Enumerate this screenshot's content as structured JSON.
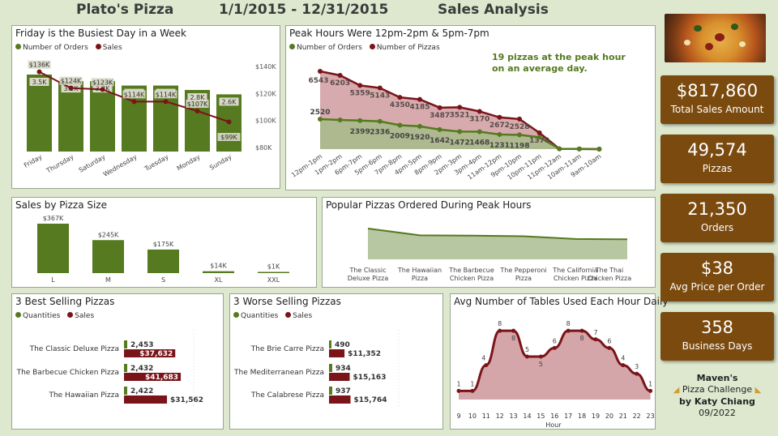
{
  "header": {
    "brand": "Plato's Pizza",
    "date_range": "1/1/2015 - 12/31/2015",
    "report": "Sales Analysis"
  },
  "kpis": [
    {
      "value": "$817,860",
      "label": "Total Sales Amount"
    },
    {
      "value": "49,574",
      "label": "Pizzas"
    },
    {
      "value": "21,350",
      "label": "Orders"
    },
    {
      "value": "$38",
      "label": "Avg Price per Order"
    },
    {
      "value": "358",
      "label": "Business Days"
    }
  ],
  "credit": {
    "line1": "Maven's",
    "line2": "Pizza Challenge",
    "line3": "by Katy Chiang",
    "line4": "09/2022"
  },
  "colors": {
    "green": "#557a1f",
    "maroon": "#7a1418",
    "kpi_bg": "#7b4a0e",
    "bg": "#dde8cf"
  },
  "chart_data": [
    {
      "type": "bar",
      "title": "Friday is the Busiest Day in a Week",
      "legend": [
        "Number of Orders",
        "Sales"
      ],
      "categories": [
        "Friday",
        "Thursday",
        "Saturday",
        "Wednesday",
        "Tuesday",
        "Monday",
        "Sunday"
      ],
      "series": [
        {
          "name": "Number of Orders",
          "values": [
            3.5,
            3.2,
            3.2,
            3.0,
            3.0,
            2.8,
            2.6
          ],
          "labels": [
            "3.5K",
            "3.2K",
            "3.2K",
            "3.0K",
            "3.0K",
            "2.8K",
            "2.6K"
          ]
        },
        {
          "name": "Sales",
          "values": [
            136,
            124,
            123,
            114,
            114,
            107,
            99
          ],
          "labels": [
            "$136K",
            "$124K",
            "$123K",
            "$114K",
            "$114K",
            "$107K",
            "$99K"
          ]
        }
      ],
      "y2_ticks": [
        "$140K",
        "$120K",
        "$100K",
        "$80K"
      ],
      "y2_tick_values": [
        140,
        120,
        100,
        80
      ]
    },
    {
      "type": "area",
      "title": "Peak Hours Were 12pm-2pm & 5pm-7pm",
      "legend": [
        "Number of Orders",
        "Number of Pizzas"
      ],
      "annotation": "19 pizzas at the peak hour on an average day.",
      "categories": [
        "12pm-1pm",
        "1pm-2pm",
        "6pm-7pm",
        "5pm-6pm",
        "7pm-8pm",
        "4pm-5pm",
        "8pm-9pm",
        "2pm-3pm",
        "3pm-4pm",
        "11am-12pm",
        "9pm-10pm",
        "10pm-11pm",
        "11pm-12am",
        "10am-11am",
        "9am-10am"
      ],
      "series": [
        {
          "name": "Number of Orders",
          "values": [
            2520,
            2455,
            2399,
            2336,
            2009,
            1920,
            1642,
            1472,
            1468,
            1231,
            1198,
            1000,
            28,
            8,
            1
          ],
          "labels": [
            "2520",
            "",
            "2399",
            "2336",
            "2009",
            "1920",
            "1642",
            "1472",
            "1468",
            "1231",
            "1198",
            "",
            "",
            "",
            ""
          ]
        },
        {
          "name": "Number of Pizzas",
          "values": [
            6543,
            6203,
            5359,
            5143,
            4350,
            4185,
            3487,
            3521,
            3170,
            2672,
            2528,
            1370,
            28,
            17,
            4
          ],
          "labels": [
            "6543",
            "6203",
            "5359",
            "5143",
            "4350",
            "4185",
            "3487",
            "3521",
            "3170",
            "2672",
            "2528",
            "1370",
            "",
            "",
            ""
          ]
        }
      ]
    },
    {
      "type": "bar",
      "title": "Sales by Pizza Size",
      "categories": [
        "L",
        "M",
        "S",
        "XL",
        "XXL"
      ],
      "values": [
        367,
        245,
        175,
        14,
        1
      ],
      "labels": [
        "$367K",
        "$245K",
        "$175K",
        "$14K",
        "$1K"
      ]
    },
    {
      "type": "area",
      "title": "Popular Pizzas Ordered During Peak Hours",
      "categories": [
        "The Classic Deluxe Pizza",
        "The Hawaiian Pizza",
        "The Barbecue Chicken Pizza",
        "The Pepperoni Pizza",
        "The California Chicken Pizza",
        "The Thai Chicken Pizza"
      ],
      "values": [
        100,
        78,
        77,
        75,
        66,
        65
      ]
    },
    {
      "type": "bar",
      "title": "3 Best Selling Pizzas",
      "legend": [
        "Quantities",
        "Sales"
      ],
      "categories": [
        "The Classic Deluxe Pizza",
        "The Barbecue Chicken Pizza",
        "The Hawaiian Pizza"
      ],
      "series": [
        {
          "name": "Quantities",
          "values": [
            2453,
            2432,
            2422
          ],
          "labels": [
            "2,453",
            "2,432",
            "2,422"
          ]
        },
        {
          "name": "Sales",
          "values": [
            37632,
            41683,
            31562
          ],
          "labels": [
            "$37,632",
            "$41,683",
            "$31,562"
          ]
        }
      ]
    },
    {
      "type": "bar",
      "title": "3 Worse Selling Pizzas",
      "legend": [
        "Quantities",
        "Sales"
      ],
      "categories": [
        "The Brie Carre Pizza",
        "The Mediterranean Pizza",
        "The Calabrese Pizza"
      ],
      "series": [
        {
          "name": "Quantities",
          "values": [
            490,
            934,
            937
          ],
          "labels": [
            "490",
            "934",
            "937"
          ]
        },
        {
          "name": "Sales",
          "values": [
            11352,
            15163,
            15764
          ],
          "labels": [
            "$11,352",
            "$15,163",
            "$15,764"
          ]
        }
      ]
    },
    {
      "type": "area",
      "title": "Avg Number of Tables Used Each Hour Daily",
      "xlabel": "Hour",
      "categories": [
        "9",
        "10",
        "11",
        "12",
        "13",
        "14",
        "15",
        "16",
        "17",
        "18",
        "19",
        "20",
        "21",
        "22",
        "23"
      ],
      "values": [
        1,
        1,
        4,
        8,
        8,
        5,
        5,
        6,
        8,
        8,
        7,
        6,
        4,
        3,
        1
      ],
      "labels": [
        "1",
        "1",
        "4",
        "8",
        "8",
        "5",
        "5",
        "6",
        "8",
        "8",
        "7",
        "6",
        "4",
        "3",
        "1"
      ]
    }
  ]
}
